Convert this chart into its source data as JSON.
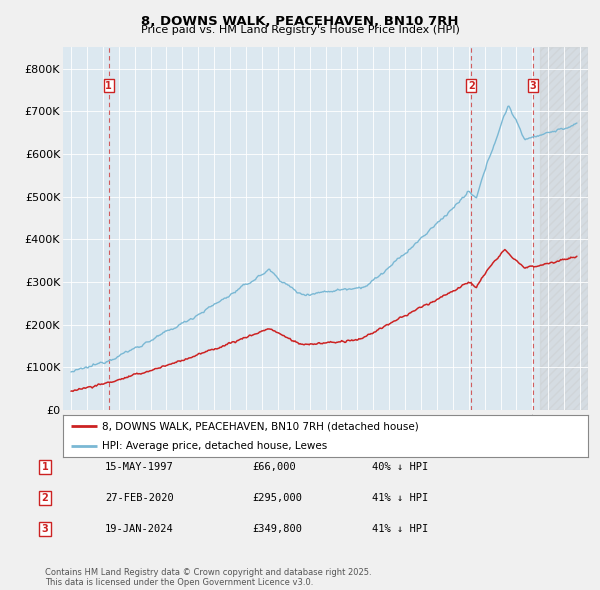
{
  "title1": "8, DOWNS WALK, PEACEHAVEN, BN10 7RH",
  "title2": "Price paid vs. HM Land Registry's House Price Index (HPI)",
  "bg_color": "#f0f0f0",
  "plot_bg": "#dce8f0",
  "hpi_color": "#7ab8d4",
  "price_color": "#cc2222",
  "legend_label1": "8, DOWNS WALK, PEACEHAVEN, BN10 7RH (detached house)",
  "legend_label2": "HPI: Average price, detached house, Lewes",
  "transactions": [
    {
      "num": 1,
      "date": "15-MAY-1997",
      "price": "£66,000",
      "hpi_pct": "40% ↓ HPI",
      "year": 1997.37
    },
    {
      "num": 2,
      "date": "27-FEB-2020",
      "price": "£295,000",
      "hpi_pct": "41% ↓ HPI",
      "year": 2020.16
    },
    {
      "num": 3,
      "date": "19-JAN-2024",
      "price": "£349,800",
      "hpi_pct": "41% ↓ HPI",
      "year": 2024.05
    }
  ],
  "footer": "Contains HM Land Registry data © Crown copyright and database right 2025.\nThis data is licensed under the Open Government Licence v3.0.",
  "ylim": [
    0,
    850000
  ],
  "yticks": [
    0,
    100000,
    200000,
    300000,
    400000,
    500000,
    600000,
    700000,
    800000
  ],
  "ytick_labels": [
    "£0",
    "£100K",
    "£200K",
    "£300K",
    "£400K",
    "£500K",
    "£600K",
    "£700K",
    "£800K"
  ],
  "xlim": [
    1994.5,
    2027.5
  ],
  "xticks": [
    1995,
    1996,
    1997,
    1998,
    1999,
    2000,
    2001,
    2002,
    2003,
    2004,
    2005,
    2006,
    2007,
    2008,
    2009,
    2010,
    2011,
    2012,
    2013,
    2014,
    2015,
    2016,
    2017,
    2018,
    2019,
    2020,
    2021,
    2022,
    2023,
    2024,
    2025,
    2026,
    2027
  ]
}
